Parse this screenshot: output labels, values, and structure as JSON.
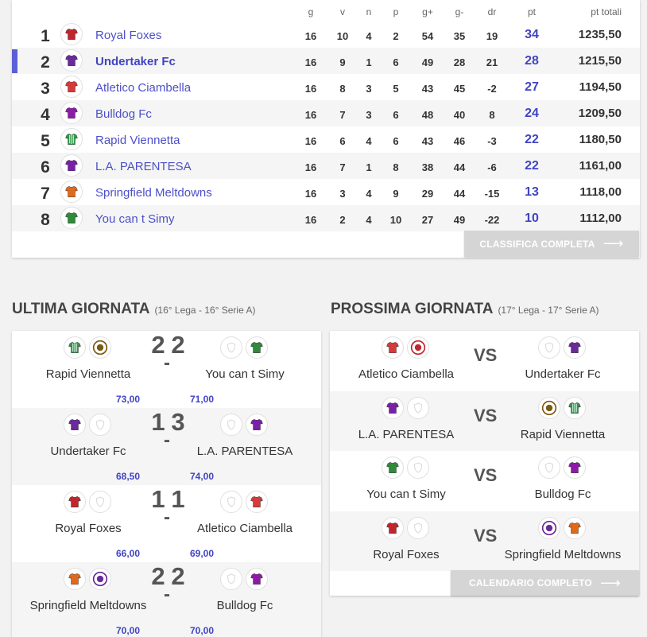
{
  "standings": {
    "headers": {
      "g": "g",
      "v": "v",
      "n": "n",
      "p": "p",
      "gplus": "g+",
      "gminus": "g-",
      "dr": "dr",
      "pt": "pt",
      "pt_totali": "pt totali"
    },
    "rows": [
      {
        "rank": "1",
        "team": "Royal Foxes",
        "g": "16",
        "v": "10",
        "n": "4",
        "p": "2",
        "gplus": "54",
        "gminus": "35",
        "dr": "19",
        "pt": "34",
        "tot": "1235,50",
        "jersey": "#c0262d",
        "icon": "red-jersey-icon"
      },
      {
        "rank": "2",
        "team": "Undertaker Fc",
        "g": "16",
        "v": "9",
        "n": "1",
        "p": "6",
        "gplus": "49",
        "gminus": "28",
        "dr": "21",
        "pt": "28",
        "tot": "1215,50",
        "jersey": "#6a2a9a",
        "icon": "purple-jersey-icon"
      },
      {
        "rank": "3",
        "team": "Atletico Ciambella",
        "g": "16",
        "v": "8",
        "n": "3",
        "p": "5",
        "gplus": "43",
        "gminus": "45",
        "dr": "-2",
        "pt": "27",
        "tot": "1194,50",
        "jersey": "#d63a3a",
        "icon": "red-white-jersey-icon"
      },
      {
        "rank": "4",
        "team": "Bulldog Fc",
        "g": "16",
        "v": "7",
        "n": "3",
        "p": "6",
        "gplus": "48",
        "gminus": "40",
        "dr": "8",
        "pt": "24",
        "tot": "1209,50",
        "jersey": "#8e1aa8",
        "icon": "purple-jersey-icon"
      },
      {
        "rank": "5",
        "team": "Rapid Viennetta",
        "g": "16",
        "v": "6",
        "n": "4",
        "p": "6",
        "gplus": "43",
        "gminus": "46",
        "dr": "-3",
        "pt": "22",
        "tot": "1180,50",
        "jersey": "#2e9a4a",
        "icon": "green-striped-jersey-icon"
      },
      {
        "rank": "6",
        "team": "L.A. PARENTESA",
        "g": "16",
        "v": "7",
        "n": "1",
        "p": "8",
        "gplus": "38",
        "gminus": "44",
        "dr": "-6",
        "pt": "22",
        "tot": "1161,00",
        "jersey": "#7a1fa8",
        "icon": "purple-jersey-icon"
      },
      {
        "rank": "7",
        "team": "Springfield Meltdowns",
        "g": "16",
        "v": "3",
        "n": "4",
        "p": "9",
        "gplus": "29",
        "gminus": "44",
        "dr": "-15",
        "pt": "13",
        "tot": "1118,00",
        "jersey": "#e06a1a",
        "icon": "orange-purple-jersey-icon"
      },
      {
        "rank": "8",
        "team": "You can t Simy",
        "g": "16",
        "v": "2",
        "n": "4",
        "p": "10",
        "gplus": "27",
        "gminus": "49",
        "dr": "-22",
        "pt": "10",
        "tot": "1112,00",
        "jersey": "#2f8a3a",
        "icon": "green-jersey-icon"
      }
    ],
    "button_label": "CLASSIFICA COMPLETA"
  },
  "last": {
    "title": "ULTIMA GIORNATA",
    "subtitle": "(16° Lega - 16° Serie A)",
    "matches": [
      {
        "home": "Rapid Viennetta",
        "away": "You can t Simy",
        "hg": "2",
        "ag": "2",
        "hs": "73,00",
        "as": "71,00"
      },
      {
        "home": "Undertaker Fc",
        "away": "L.A. PARENTESA",
        "hg": "1",
        "ag": "3",
        "hs": "68,50",
        "as": "74,00"
      },
      {
        "home": "Royal Foxes",
        "away": "Atletico Ciambella",
        "hg": "1",
        "ag": "1",
        "hs": "66,00",
        "as": "69,00"
      },
      {
        "home": "Springfield Meltdowns",
        "away": "Bulldog Fc",
        "hg": "2",
        "ag": "2",
        "hs": "70,00",
        "as": "70,00"
      }
    ]
  },
  "next": {
    "title": "PROSSIMA GIORNATA",
    "subtitle": "(17° Lega - 17° Serie A)",
    "vs": "VS",
    "matches": [
      {
        "home": "Atletico Ciambella",
        "away": "Undertaker Fc"
      },
      {
        "home": "L.A. PARENTESA",
        "away": "Rapid Viennetta"
      },
      {
        "home": "You can t Simy",
        "away": "Bulldog Fc"
      },
      {
        "home": "Royal Foxes",
        "away": "Springfield Meltdowns"
      }
    ],
    "button_label": "CALENDARIO COMPLETO"
  },
  "colors": {
    "accent": "#4044c2",
    "button_grey": "#d5d5d5",
    "row_shade": "#f5f5f5"
  }
}
